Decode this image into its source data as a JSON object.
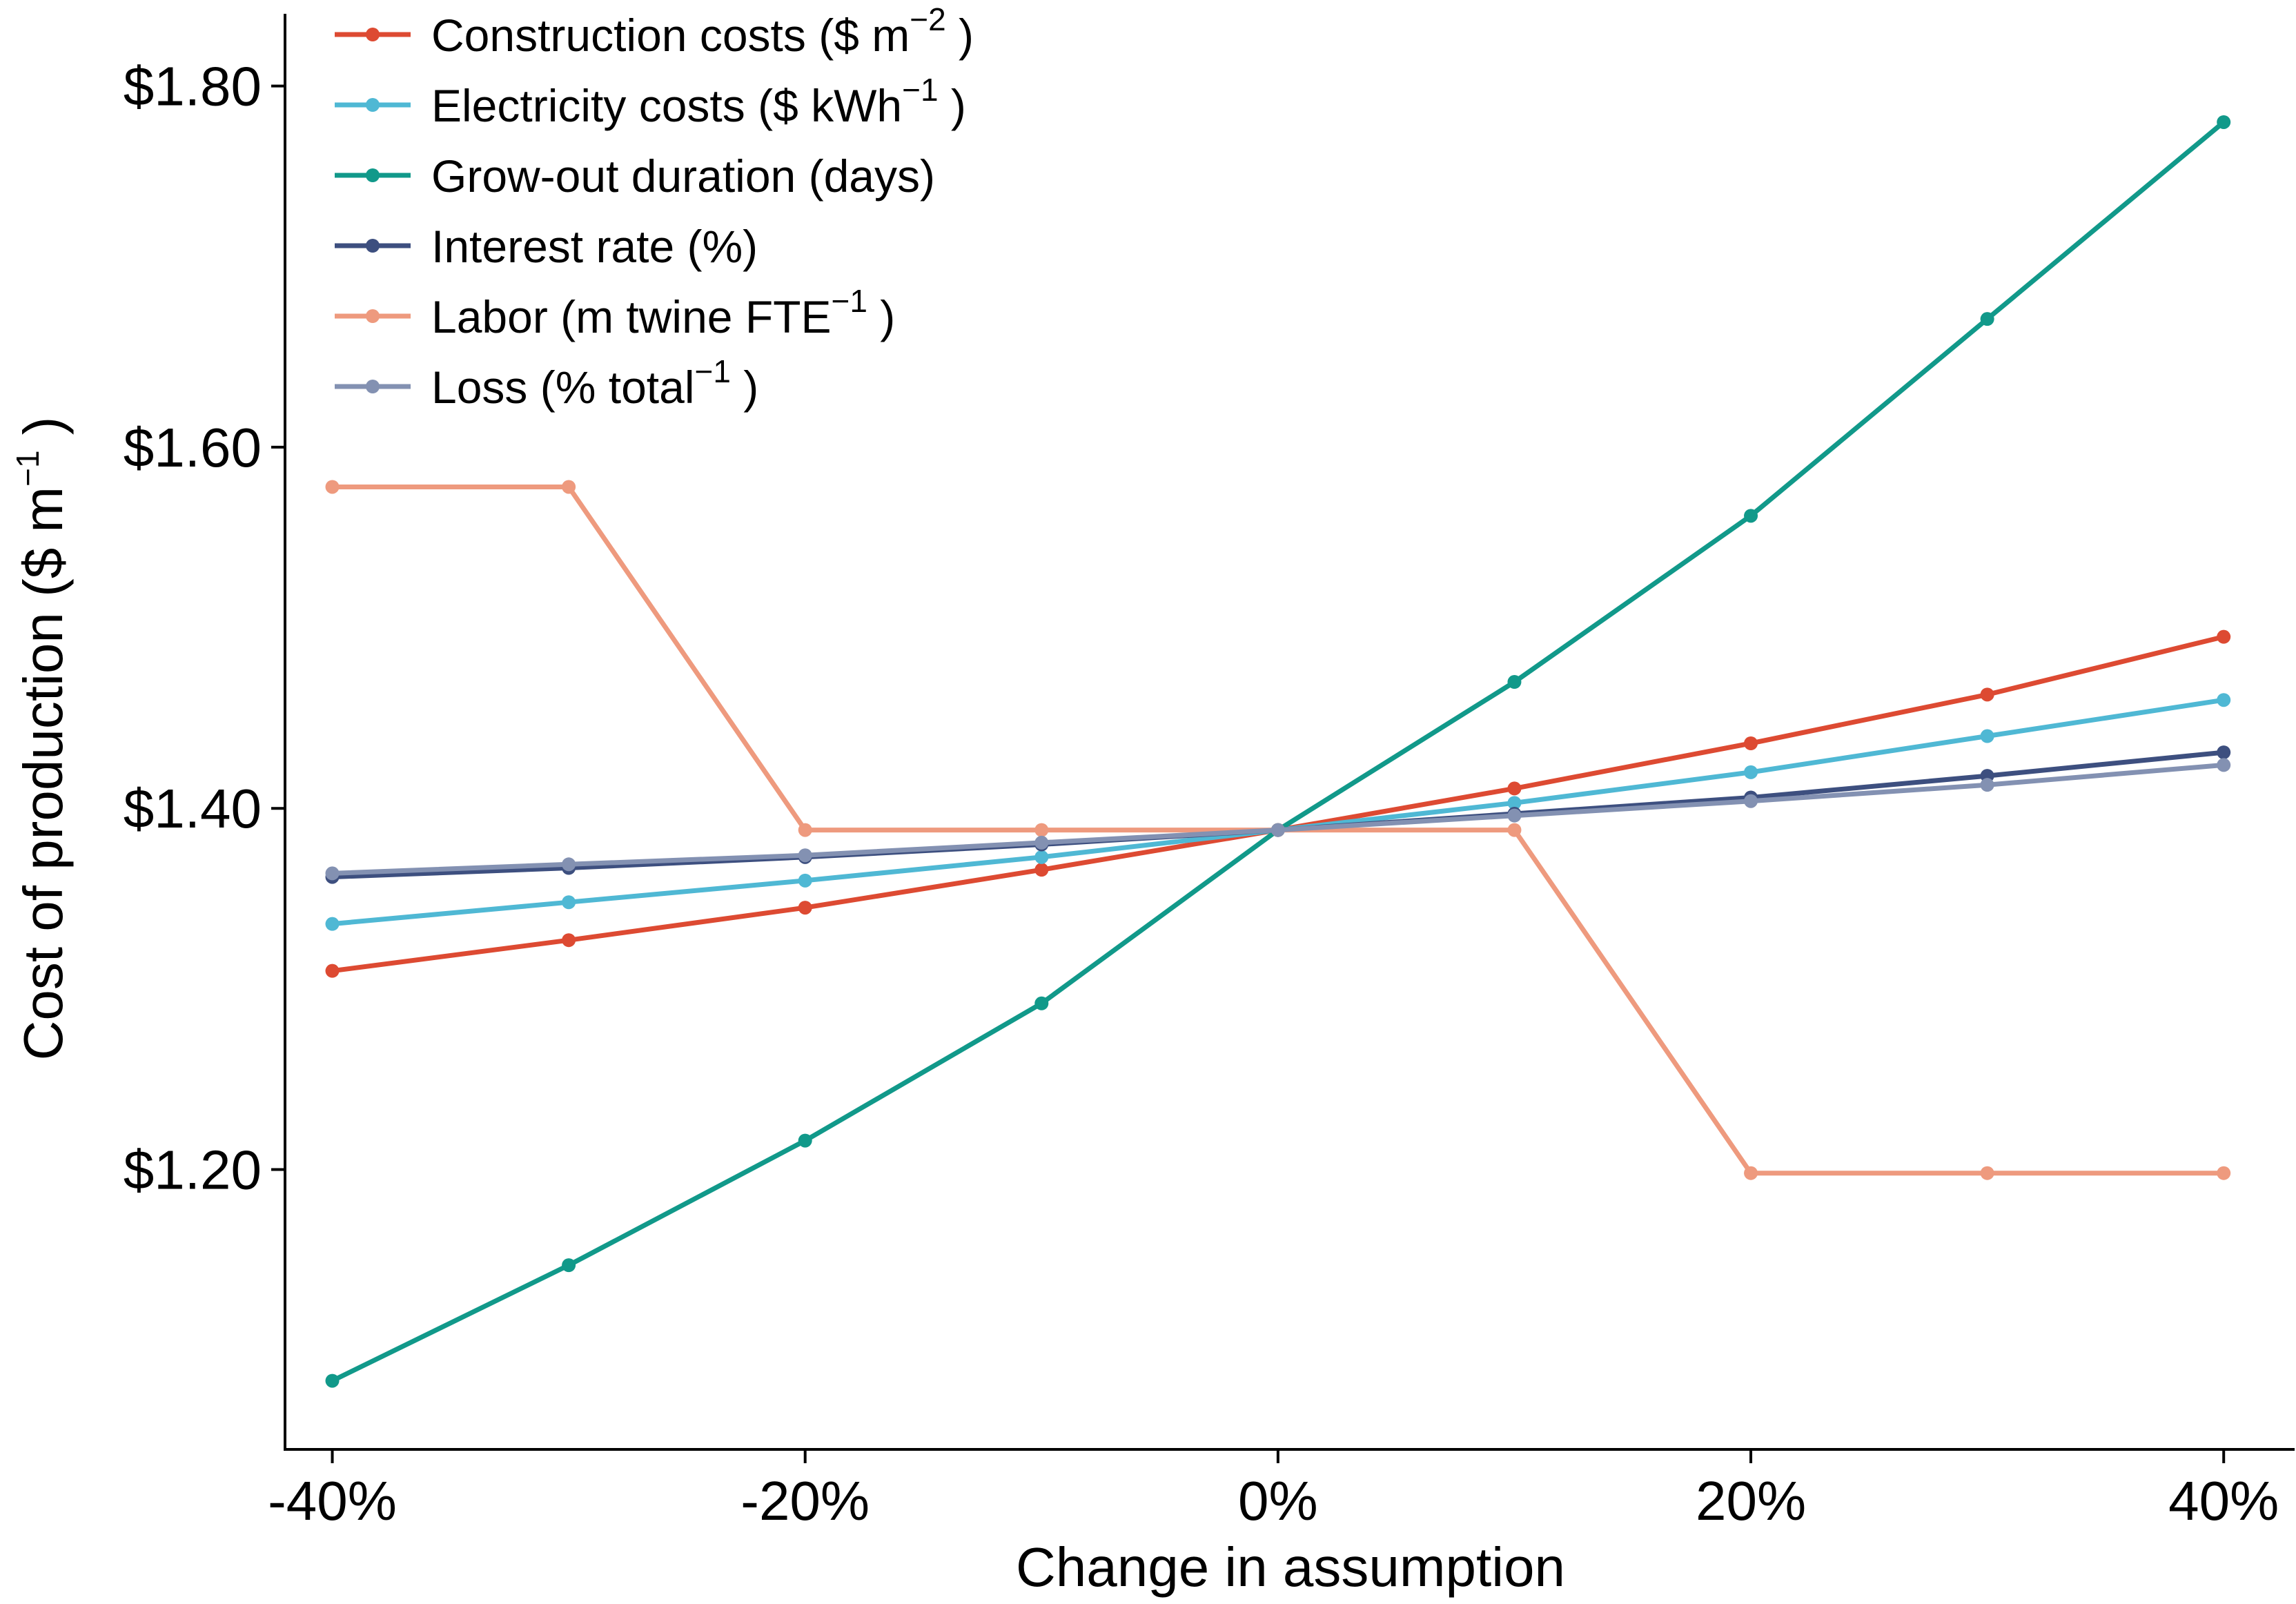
{
  "chart_data": {
    "type": "line",
    "title": "",
    "xlabel": "Change in assumption",
    "ylabel": "Cost of production ($ m",
    "ylabel_sup": "−1",
    "ylabel_close": " )",
    "x": [
      -40,
      -30,
      -20,
      -10,
      0,
      10,
      20,
      30,
      40
    ],
    "x_ticks": [
      -40,
      -20,
      0,
      20,
      40
    ],
    "x_tick_labels": [
      "-40%",
      "-20%",
      "0%",
      "20%",
      "40%"
    ],
    "y_ticks": [
      1.2,
      1.4,
      1.6,
      1.8
    ],
    "y_tick_labels": [
      "$1.20",
      "$1.40",
      "$1.60",
      "$1.80"
    ],
    "xlim": [
      -42,
      43
    ],
    "ylim": [
      1.045,
      1.84
    ],
    "grid": false,
    "legend_position": "top-left",
    "series": [
      {
        "name": "Construction costs ($ m",
        "sup": "−2",
        "close": " )",
        "color": "#DD4A32",
        "values": [
          1.31,
          1.327,
          1.345,
          1.366,
          1.388,
          1.411,
          1.436,
          1.463,
          1.495
        ]
      },
      {
        "name": "Electricity costs ($ kWh",
        "sup": "−1",
        "close": " )",
        "color": "#4FB8D4",
        "values": [
          1.336,
          1.348,
          1.36,
          1.373,
          1.388,
          1.403,
          1.42,
          1.44,
          1.46
        ]
      },
      {
        "name": "Grow-out duration (days)",
        "sup": "",
        "close": "",
        "color": "#11998A",
        "values": [
          1.083,
          1.147,
          1.216,
          1.292,
          1.388,
          1.47,
          1.562,
          1.671,
          1.78
        ]
      },
      {
        "name": "Interest rate (%)",
        "sup": "",
        "close": "",
        "color": "#3D4F7F",
        "values": [
          1.362,
          1.367,
          1.373,
          1.38,
          1.388,
          1.397,
          1.406,
          1.418,
          1.431
        ]
      },
      {
        "name": "Labor (m twine FTE",
        "sup": "−1",
        "close": " )",
        "color": "#EE9A7E",
        "values": [
          1.578,
          1.578,
          1.388,
          1.388,
          1.388,
          1.388,
          1.198,
          1.198,
          1.198
        ]
      },
      {
        "name": "Loss (% total",
        "sup": "−1",
        "close": " )",
        "color": "#8391B2",
        "values": [
          1.364,
          1.369,
          1.374,
          1.381,
          1.388,
          1.396,
          1.404,
          1.413,
          1.424
        ]
      }
    ]
  }
}
